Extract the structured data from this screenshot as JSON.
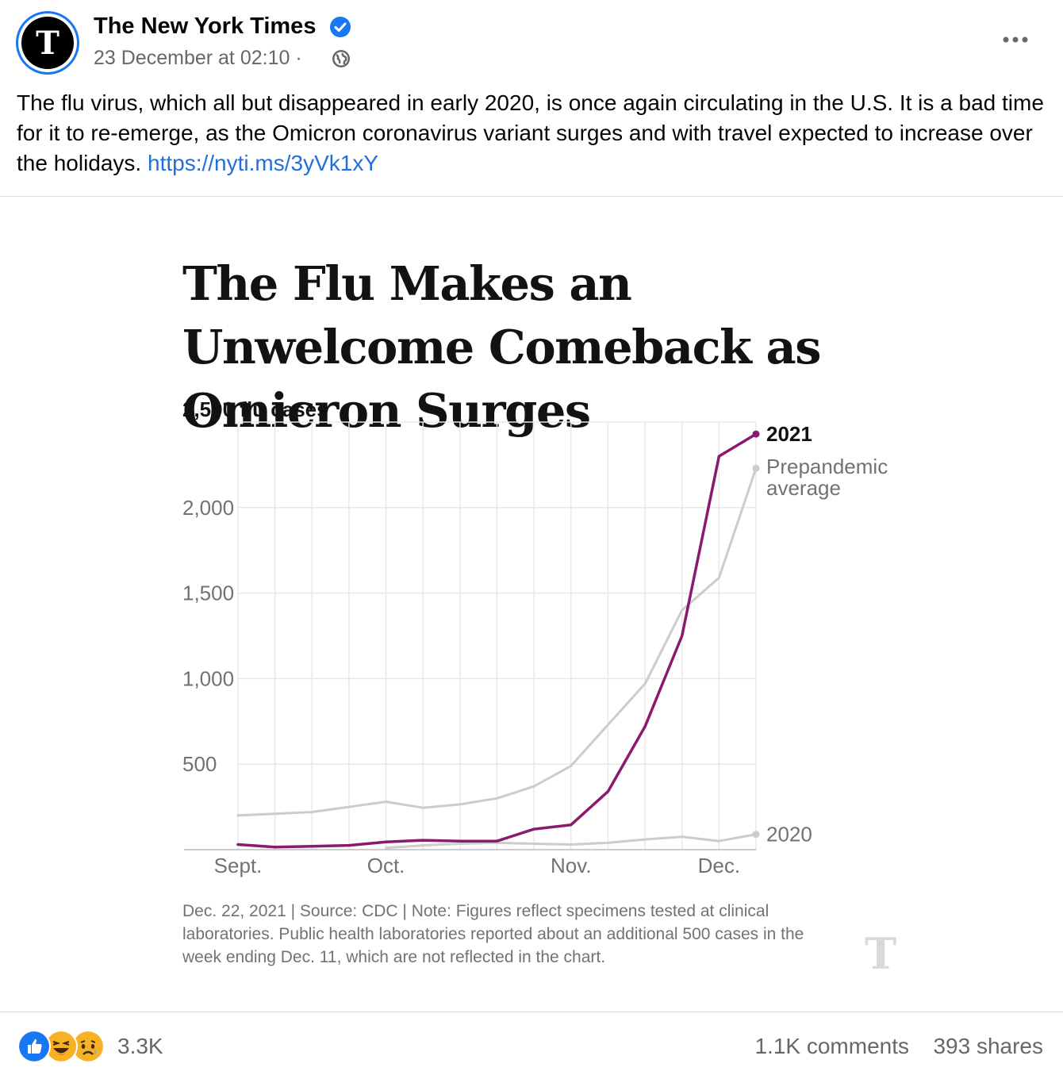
{
  "post": {
    "page_name": "The New York Times",
    "avatar_letter": "T",
    "timestamp": "23 December at 02:10",
    "separator": "·",
    "caption": "The flu virus, which all but disappeared in early 2020, is once again circulating in the U.S. It is a bad time for it to re-emerge, as the Omicron coronavirus variant surges and with travel expected to increase over the holidays.",
    "link": "https://nyti.ms/3yVk1xY"
  },
  "chart": {
    "title": "The Flu Makes an Unwelcome Comeback as Omicron Surges",
    "y_top_label": "2,500 flu cases",
    "y_ticks": [
      "2,000",
      "1,500",
      "1,000",
      "500"
    ],
    "x_ticks": [
      "Sept.",
      "Oct.",
      "Nov.",
      "Dec."
    ],
    "source": "Dec. 22, 2021 | Source: CDC | Note: Figures reflect specimens tested at clinical laboratories. Public health laboratories reported about an additional 500 cases in the week ending Dec. 11, which are not reflected in the chart.",
    "watermark": "T"
  },
  "chart_data": {
    "type": "line",
    "title": "The Flu Makes an Unwelcome Comeback as Omicron Surges",
    "ylabel": "2,500 flu cases",
    "ylim": [
      0,
      2500
    ],
    "x_ticks": [
      "Sept.",
      "Oct.",
      "Nov.",
      "Dec."
    ],
    "x_weeks": [
      0,
      1,
      2,
      3,
      4,
      5,
      6,
      7,
      8,
      9,
      10,
      11,
      12,
      13,
      14
    ],
    "series": [
      {
        "name": "2021",
        "color": "#8b1a6f",
        "values": [
          30,
          15,
          20,
          25,
          45,
          55,
          50,
          50,
          120,
          145,
          340,
          720,
          1250,
          2300,
          2430
        ]
      },
      {
        "name": "Prepandemic average",
        "color": "#cccccc",
        "values": [
          200,
          210,
          220,
          250,
          280,
          245,
          265,
          300,
          370,
          490,
          730,
          970,
          1400,
          1590,
          2230
        ]
      },
      {
        "name": "2020",
        "color": "#cccccc",
        "values": [
          null,
          null,
          null,
          null,
          10,
          25,
          35,
          40,
          35,
          30,
          40,
          60,
          75,
          50,
          90
        ]
      }
    ],
    "grid": true,
    "legend": "inline labels at line ends"
  },
  "footer": {
    "reaction_count": "3.3K",
    "comments": "1.1K comments",
    "shares": "393 shares"
  }
}
